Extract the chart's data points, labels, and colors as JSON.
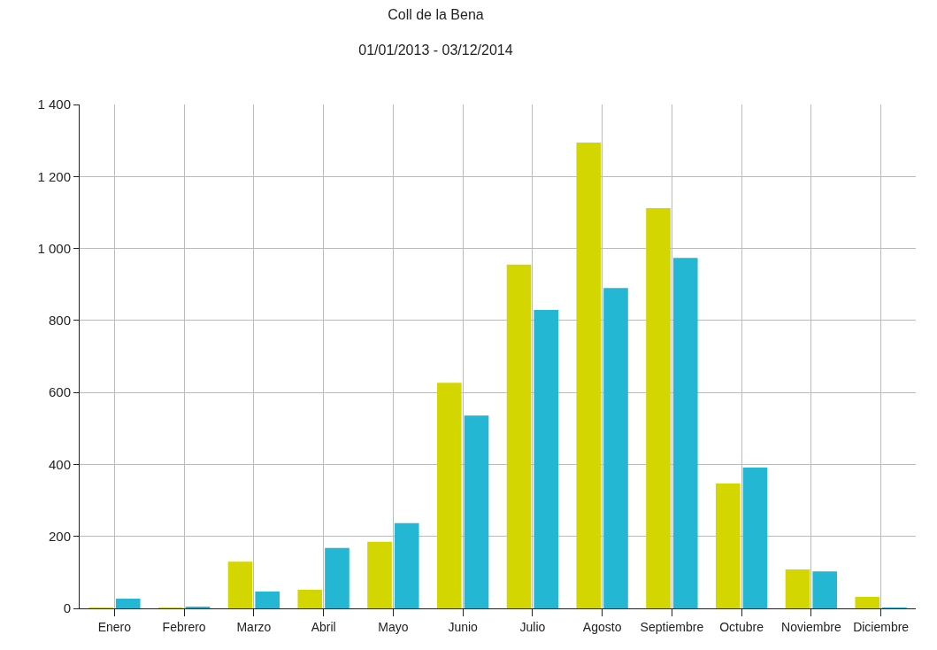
{
  "chart_data": {
    "type": "bar",
    "title": "Coll de la Bena",
    "subtitle": "01/01/2013 - 03/12/2014",
    "categories": [
      "Enero",
      "Febrero",
      "Marzo",
      "Abril",
      "Mayo",
      "Junio",
      "Julio",
      "Agosto",
      "Septiembre",
      "Octubre",
      "Noviembre",
      "Diciembre"
    ],
    "series": [
      {
        "color": "#d4d600",
        "values": [
          2,
          2,
          130,
          52,
          185,
          627,
          955,
          1294,
          1112,
          347,
          108,
          32
        ]
      },
      {
        "color": "#23b7d3",
        "values": [
          27,
          5,
          47,
          168,
          237,
          536,
          829,
          890,
          974,
          391,
          103,
          2
        ]
      }
    ],
    "ylim": [
      0,
      1400
    ],
    "yticks": [
      0,
      200,
      400,
      600,
      800,
      {
        "value": 1000,
        "label": "1 000"
      },
      {
        "value": 1200,
        "label": "1 200"
      },
      {
        "value": 1400,
        "label": "1 400"
      }
    ],
    "grid": true
  }
}
